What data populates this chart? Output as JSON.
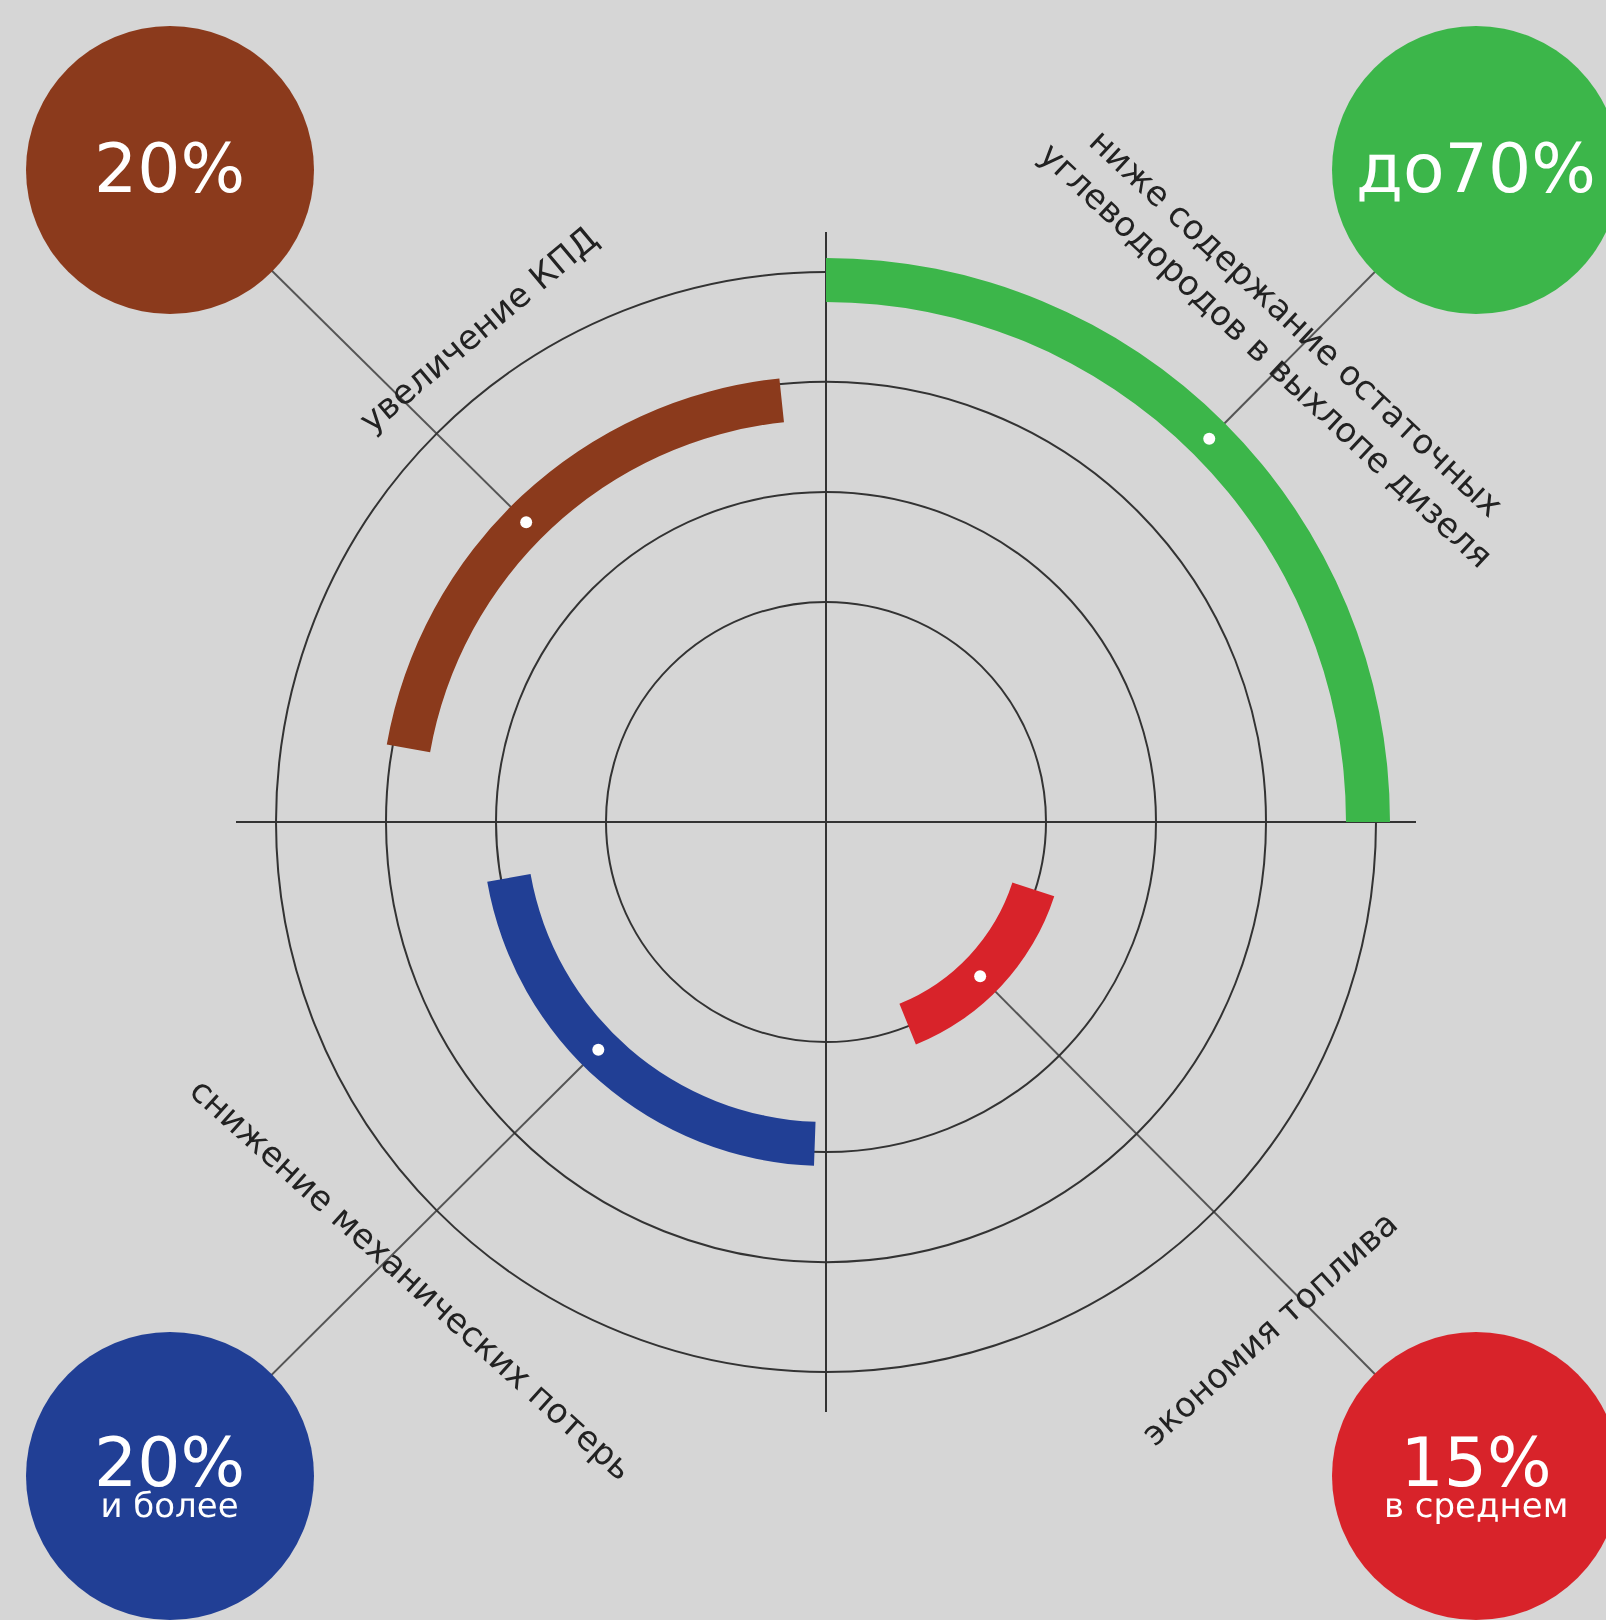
{
  "chart_data": {
    "type": "other",
    "categories": [
      "увеличение КПД",
      "ниже содержание остаточных углеводородов в выхлопе дизеля",
      "снижение механических потерь",
      "экономия топлива"
    ],
    "values": [
      20,
      70,
      20,
      15
    ],
    "value_labels": [
      "20%",
      "до70%",
      "20% и более",
      "15% в среднем"
    ],
    "colors": [
      "#8b3a1c",
      "#3cb64a",
      "#213f95",
      "#d8232a"
    ]
  }
}
